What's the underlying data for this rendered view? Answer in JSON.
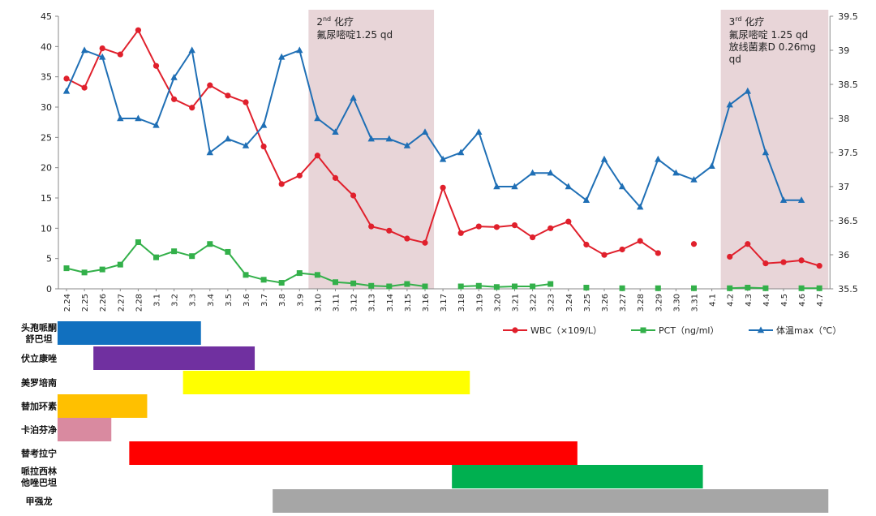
{
  "chart_data": {
    "type": "line",
    "x": [
      "2.24",
      "2.25",
      "2.26",
      "2.27",
      "2.28",
      "3.1",
      "3.2",
      "3.3",
      "3.4",
      "3.5",
      "3.6",
      "3.7",
      "3.8",
      "3.9",
      "3.10",
      "3.11",
      "3.12",
      "3.13",
      "3.14",
      "3.15",
      "3.16",
      "3.17",
      "3.18",
      "3.19",
      "3.20",
      "3.21",
      "3.22",
      "3.23",
      "3.24",
      "3.25",
      "3.26",
      "3.27",
      "3.28",
      "3.29",
      "3.30",
      "3.31",
      "4.1",
      "4.2",
      "4.3",
      "4.4",
      "4.5",
      "4.6",
      "4.7"
    ],
    "ylim_left": [
      0,
      45
    ],
    "yticks_left": [
      0,
      5,
      10,
      15,
      20,
      25,
      30,
      35,
      40,
      45
    ],
    "ylim_right": [
      35.5,
      39.5
    ],
    "yticks_right": [
      "35.5",
      "36",
      "36.5",
      "37",
      "37.5",
      "38",
      "38.5",
      "39",
      "39.5"
    ],
    "series": [
      {
        "name": "WBC（×109/L）",
        "axis": "left",
        "color": "#e0202c",
        "marker": "circle",
        "values": [
          34.7,
          33.2,
          39.7,
          38.7,
          42.7,
          36.8,
          31.3,
          29.9,
          33.6,
          31.9,
          30.8,
          23.5,
          17.3,
          18.7,
          22.0,
          18.3,
          15.4,
          10.3,
          9.6,
          8.3,
          7.6,
          16.7,
          9.2,
          10.3,
          10.2,
          10.5,
          8.5,
          10.0,
          11.1,
          7.3,
          5.6,
          6.5,
          7.9,
          5.9,
          null,
          7.4,
          null,
          5.3,
          7.4,
          4.2,
          4.4,
          4.7,
          3.8
        ]
      },
      {
        "name": "PCT（ng/ml）",
        "axis": "left",
        "color": "#33b04a",
        "marker": "square",
        "values": [
          3.4,
          2.7,
          3.2,
          4.0,
          7.7,
          5.2,
          6.2,
          5.4,
          7.4,
          6.1,
          2.3,
          1.5,
          1.0,
          2.6,
          2.3,
          1.1,
          0.9,
          0.5,
          0.4,
          0.8,
          0.4,
          null,
          0.4,
          0.5,
          0.3,
          0.4,
          0.4,
          0.8,
          null,
          0.2,
          null,
          0.1,
          null,
          0.1,
          null,
          0.1,
          null,
          0.1,
          0.2,
          0.1,
          null,
          0.1,
          0.1
        ]
      },
      {
        "name": "体温max（℃）",
        "axis": "right",
        "color": "#1f6fb5",
        "marker": "triangle",
        "values": [
          38.4,
          39.0,
          38.9,
          38.0,
          38.0,
          37.9,
          38.6,
          39.0,
          37.5,
          37.7,
          37.6,
          37.9,
          38.9,
          39.0,
          38.0,
          37.8,
          38.3,
          37.7,
          37.7,
          37.6,
          37.8,
          37.4,
          37.5,
          37.8,
          37.0,
          37.0,
          37.2,
          37.2,
          37.0,
          36.8,
          37.4,
          37.0,
          36.7,
          37.4,
          37.2,
          37.1,
          37.3,
          38.2,
          38.4,
          37.5,
          36.8,
          36.8,
          null
        ]
      }
    ],
    "shaded_periods": [
      {
        "from": "3.10",
        "to": "3.16",
        "line1_main": "2",
        "line1_sup": "nd",
        "line1_rest": " 化疗",
        "line2": "氟尿嘧啶1.25 qd",
        "line3": "",
        "line4": ""
      },
      {
        "from": "4.2",
        "to": "4.7",
        "line1_main": "3",
        "line1_sup": "rd",
        "line1_rest": " 化疗",
        "line2": "氟尿嘧啶 1.25 qd",
        "line3": "放线菌素D 0.26mg",
        "line4": "qd"
      }
    ],
    "drug_bars": [
      {
        "label_lines": [
          "头孢哌酮",
          "舒巴坦"
        ],
        "from": "2.24",
        "to": "3.3",
        "color": "#1170bf"
      },
      {
        "label_lines": [
          "伏立康唑"
        ],
        "from": "2.26",
        "to": "3.6",
        "color": "#7030a0"
      },
      {
        "label_lines": [
          "美罗培南"
        ],
        "from": "3.3",
        "to": "3.18",
        "color": "#ffff00"
      },
      {
        "label_lines": [
          "替加环素"
        ],
        "from": "2.24",
        "to": "2.28",
        "color": "#ffc000"
      },
      {
        "label_lines": [
          "卡泊芬净"
        ],
        "from": "2.24",
        "to": "2.26",
        "color": "#d98aa0"
      },
      {
        "label_lines": [
          "替考拉宁"
        ],
        "from": "2.28",
        "to": "3.24",
        "color": "#ff0000"
      },
      {
        "label_lines": [
          "哌拉西林",
          "他唑巴坦"
        ],
        "from": "3.18",
        "to": "3.31",
        "color": "#00b050"
      },
      {
        "label_lines": [
          "甲强龙"
        ],
        "from": "3.8",
        "to": "4.7",
        "color": "#a6a6a6"
      }
    ],
    "colors": {
      "shade": "#e8d5d8",
      "axis": "#888888"
    }
  }
}
